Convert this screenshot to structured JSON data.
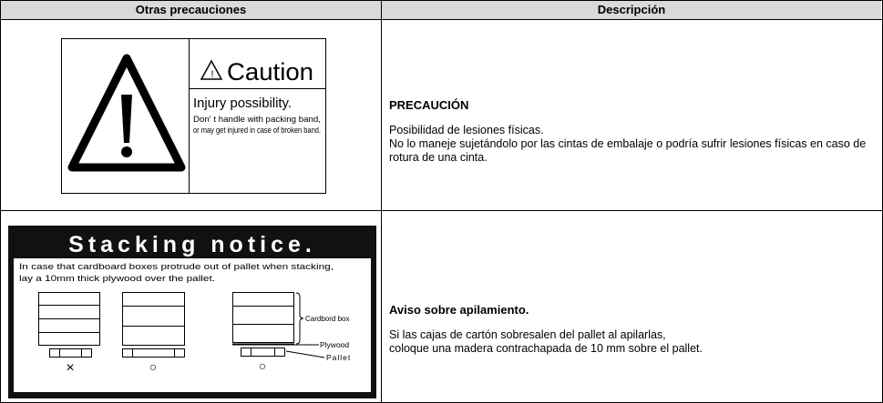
{
  "header": {
    "columns": [
      "Otras precauciones",
      "Descripción"
    ]
  },
  "rows": [
    {
      "label": {
        "title": "Caution",
        "subtitle": "Injury possibility.",
        "lines": [
          "Don' t handle with packing band,",
          "or may get injured in case of broken band."
        ]
      },
      "description": {
        "title": "PRECAUCIÓN",
        "lines": [
          "Posibilidad de lesiones físicas.",
          "No lo maneje sujetándolo por las cintas de embalaje o podría sufrir lesiones físicas en caso de rotura de una cinta."
        ]
      }
    },
    {
      "label": {
        "title": "Stacking notice.",
        "lines": [
          "In case that cardboard boxes protrude out of pallet when stacking,",
          "lay a 10mm thick plywood over the pallet."
        ],
        "parts": [
          "Cardbord box",
          "Plywood",
          "Pallet"
        ],
        "marks": [
          "×",
          "○",
          "○"
        ]
      },
      "description": {
        "title": "Aviso sobre apilamiento.",
        "lines": [
          "Si las cajas de cartón sobresalen del pallet al apilarlas,",
          "coloque una madera contrachapada de 10 mm sobre el pallet."
        ]
      }
    }
  ]
}
